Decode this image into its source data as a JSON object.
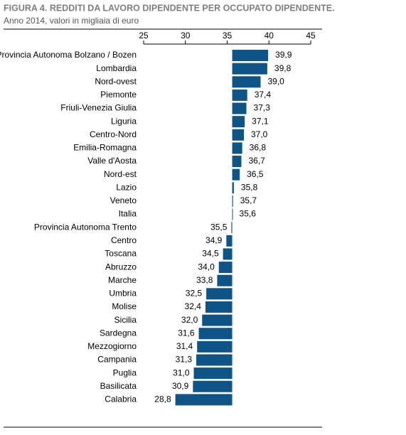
{
  "chart_data": {
    "type": "bar",
    "title": "FIGURA 4. REDDITI DA LAVORO DIPENDENTE PER OCCUPATO DIPENDENTE.",
    "subtitle": "Anno 2014, valori in migliaia di euro",
    "categories": [
      "Provincia Autonoma Bolzano / Bozen",
      "Lombardia",
      "Nord-ovest",
      "Piemonte",
      "Friuli-Venezia Giulia",
      "Liguria",
      "Centro-Nord",
      "Emilia-Romagna",
      "Valle d'Aosta",
      "Nord-est",
      "Lazio",
      "Veneto",
      "Italia",
      "Provincia Autonoma Trento",
      "Centro",
      "Toscana",
      "Abruzzo",
      "Marche",
      "Umbria",
      "Molise",
      "Sicilia",
      "Sardegna",
      "Mezzogiorno",
      "Campania",
      "Puglia",
      "Basilicata",
      "Calabria"
    ],
    "values": [
      39.9,
      39.8,
      39.0,
      37.4,
      37.3,
      37.1,
      37.0,
      36.8,
      36.7,
      36.5,
      35.8,
      35.7,
      35.6,
      35.5,
      34.9,
      34.5,
      34.0,
      33.8,
      32.5,
      32.4,
      32.0,
      31.6,
      31.4,
      31.3,
      31.0,
      30.9,
      28.8
    ],
    "value_labels": [
      "39,9",
      "39,8",
      "39,0",
      "37,4",
      "37,3",
      "37,1",
      "37,0",
      "36,8",
      "36,7",
      "36,5",
      "35,8",
      "35,7",
      "35,6",
      "35,5",
      "34,9",
      "34,5",
      "34,0",
      "33,8",
      "32,5",
      "32,4",
      "32,0",
      "31,6",
      "31,4",
      "31,3",
      "31,0",
      "30,9",
      "28,8"
    ],
    "color": "#0f5486",
    "baseline": 35.6,
    "xlim": [
      25,
      45
    ],
    "xticks": [
      25,
      30,
      35,
      40,
      45
    ]
  }
}
